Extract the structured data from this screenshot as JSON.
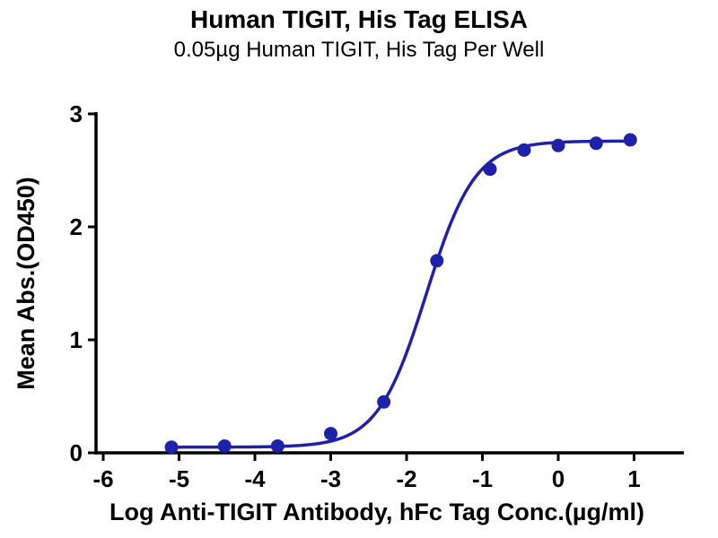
{
  "header": {
    "title": "Human TIGIT, His Tag ELISA",
    "subtitle": "0.05µg Human TIGIT, His Tag Per Well"
  },
  "chart_data": {
    "type": "scatter",
    "title": "Human TIGIT, His Tag ELISA",
    "subtitle": "0.05µg Human TIGIT, His Tag Per Well",
    "xlabel": "Log Anti-TIGIT Antibody, hFc Tag Conc.(µg/ml)",
    "ylabel": "Mean Abs.(OD450)",
    "xlim": [
      -6,
      1
    ],
    "ylim": [
      0,
      3
    ],
    "x_ticks": [
      -6,
      -5,
      -4,
      -3,
      -2,
      -1,
      0,
      1
    ],
    "y_ticks": [
      0,
      1,
      2,
      3
    ],
    "grid": false,
    "legend_position": "none",
    "series": [
      {
        "name": "Anti-TIGIT Antibody, hFc Tag",
        "x": [
          -5.1,
          -4.4,
          -3.7,
          -3.0,
          -2.3,
          -1.6,
          -0.9,
          -0.45,
          0.0,
          0.5,
          0.95
        ],
        "y": [
          0.05,
          0.06,
          0.06,
          0.17,
          0.45,
          1.7,
          2.51,
          2.68,
          2.72,
          2.74,
          2.77
        ]
      }
    ],
    "fit_curve": {
      "model": "4PL",
      "bottom": 0.05,
      "top": 2.76,
      "log_ec50": -1.74,
      "hill_slope": 1.35,
      "x_range": [
        -5.1,
        0.95
      ]
    },
    "colors": {
      "points": "#1e22aa",
      "curve": "#1e22aa",
      "axis": "#000000",
      "text": "#000000",
      "background": "#ffffff"
    }
  }
}
